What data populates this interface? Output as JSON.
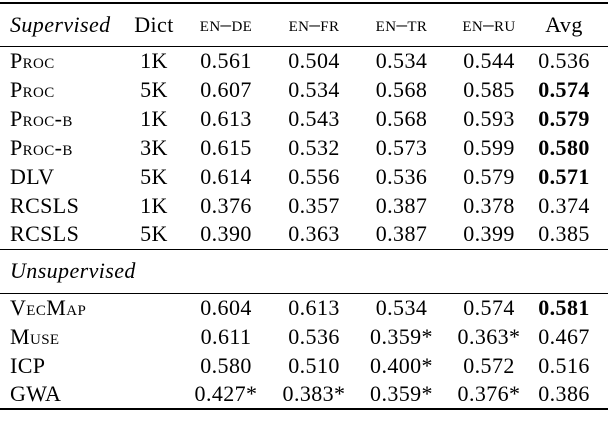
{
  "table": {
    "header": {
      "section": "Supervised",
      "dict": "Dict",
      "langs": [
        "en–de",
        "en–fr",
        "en–tr",
        "en–ru"
      ],
      "avg": "Avg"
    },
    "supervised_rows": [
      {
        "method": "Proc",
        "dict": "1K",
        "scores": [
          "0.561",
          "0.504",
          "0.534",
          "0.544"
        ],
        "avg": "0.536",
        "avg_bold": false
      },
      {
        "method": "Proc",
        "dict": "5K",
        "scores": [
          "0.607",
          "0.534",
          "0.568",
          "0.585"
        ],
        "avg": "0.574",
        "avg_bold": true
      },
      {
        "method": "Proc-b",
        "dict": "1K",
        "scores": [
          "0.613",
          "0.543",
          "0.568",
          "0.593"
        ],
        "avg": "0.579",
        "avg_bold": true
      },
      {
        "method": "Proc-b",
        "dict": "3K",
        "scores": [
          "0.615",
          "0.532",
          "0.573",
          "0.599"
        ],
        "avg": "0.580",
        "avg_bold": true
      },
      {
        "method": "DLV",
        "dict": "5K",
        "scores": [
          "0.614",
          "0.556",
          "0.536",
          "0.579"
        ],
        "avg": "0.571",
        "avg_bold": true
      },
      {
        "method": "RCSLS",
        "dict": "1K",
        "scores": [
          "0.376",
          "0.357",
          "0.387",
          "0.378"
        ],
        "avg": "0.374",
        "avg_bold": false
      },
      {
        "method": "RCSLS",
        "dict": "5K",
        "scores": [
          "0.390",
          "0.363",
          "0.387",
          "0.399"
        ],
        "avg": "0.385",
        "avg_bold": false
      }
    ],
    "unsupervised_section": "Unsupervised",
    "unsupervised_rows": [
      {
        "method": "VecMap",
        "scores": [
          "0.604",
          "0.613",
          "0.534",
          "0.574"
        ],
        "avg": "0.581",
        "avg_bold": true
      },
      {
        "method": "Muse",
        "scores": [
          "0.611",
          "0.536",
          "0.359*",
          "0.363*"
        ],
        "avg": "0.467",
        "avg_bold": false
      },
      {
        "method": "ICP",
        "scores": [
          "0.580",
          "0.510",
          "0.400*",
          "0.572"
        ],
        "avg": "0.516",
        "avg_bold": false
      },
      {
        "method": "GWA",
        "scores": [
          "0.427*",
          "0.383*",
          "0.359*",
          "0.376*"
        ],
        "avg": "0.386",
        "avg_bold": false
      }
    ]
  }
}
